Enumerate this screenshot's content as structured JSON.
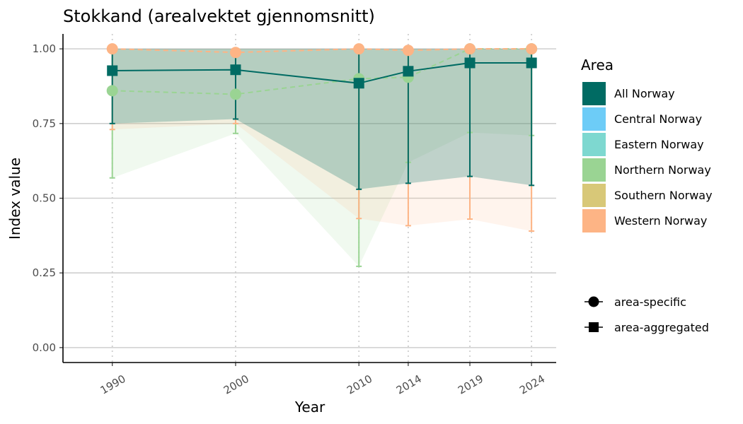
{
  "chart_data": {
    "type": "line",
    "title": "Stokkand (arealvektet gjennomsnitt)",
    "xlabel": "Year",
    "ylabel": "Index value",
    "x": [
      1990,
      2000,
      2010,
      2014,
      2019,
      2024
    ],
    "x_tick_labels": [
      "1990",
      "2000",
      "2010",
      "2014",
      "2019",
      "2024"
    ],
    "xlim": [
      1986,
      2026
    ],
    "ylim": [
      -0.05,
      1.05
    ],
    "y_ticks": [
      0,
      0.25,
      0.5,
      0.75,
      1.0
    ],
    "y_tick_labels": [
      "0.00",
      "0.25",
      "0.50",
      "0.75",
      "1.00"
    ],
    "grid": "horizontal major lines plus dotted vertical lines at each year",
    "legend": {
      "position": "right",
      "area_title": "Area",
      "area_items": [
        {
          "label": "All Norway",
          "color": "#006B63"
        },
        {
          "label": "Central Norway",
          "color": "#6DCCF7"
        },
        {
          "label": "Eastern Norway",
          "color": "#7ED8D0"
        },
        {
          "label": "Northern Norway",
          "color": "#9AD493"
        },
        {
          "label": "Southern Norway",
          "color": "#D8C878"
        },
        {
          "label": "Western Norway",
          "color": "#FDB485"
        }
      ],
      "shape_items": [
        {
          "label": "area-specific",
          "shape": "circle"
        },
        {
          "label": "area-aggregated",
          "shape": "square"
        }
      ]
    },
    "series": [
      {
        "name": "Northern Norway",
        "kind": "area-specific",
        "color": "#9AD493",
        "values": [
          0.86,
          0.848,
          0.9,
          0.905,
          1.0,
          1.0
        ],
        "lower": [
          0.568,
          0.717,
          0.272,
          0.62,
          0.72,
          0.71
        ],
        "upper": [
          1.0,
          1.0,
          1.0,
          1.0,
          1.0,
          1.0
        ]
      },
      {
        "name": "Western Norway",
        "kind": "area-specific",
        "color": "#FDB485",
        "values": [
          1.0,
          0.988,
          1.0,
          0.995,
          1.0,
          1.0
        ],
        "lower": [
          0.73,
          0.75,
          0.432,
          0.408,
          0.43,
          0.39
        ],
        "upper": [
          1.0,
          1.0,
          1.0,
          1.0,
          1.0,
          1.0
        ]
      },
      {
        "name": "All Norway",
        "kind": "area-aggregated",
        "color": "#006B63",
        "values": [
          0.927,
          0.93,
          0.885,
          0.925,
          0.953,
          0.953
        ],
        "lower": [
          0.75,
          0.765,
          0.53,
          0.55,
          0.573,
          0.543
        ],
        "upper": [
          1.0,
          1.0,
          1.0,
          1.0,
          1.0,
          1.0
        ]
      }
    ]
  }
}
